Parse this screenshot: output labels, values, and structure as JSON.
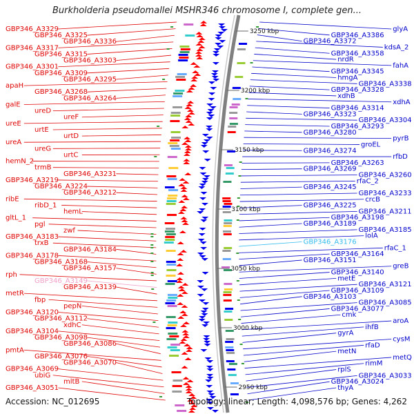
{
  "title": "Burkholderia pseudomallei MSHR346 chromosome I, complete gen...",
  "footer": {
    "accession": "Accession: NC_012695",
    "summary": "Topology: linear; Length: 4,098,576 bp; Genes: 4,262"
  },
  "colors": {
    "left_labels": "#e00000",
    "right_labels": "#0000cc",
    "highlight_left": "#f0a0c8",
    "highlight_right": "#33bbee",
    "backbone": "#808080"
  },
  "kbp_ticks": [
    "3250 kbp",
    "3200 kbp",
    "3150 kbp",
    "3100 kbp",
    "3050 kbp",
    "3000 kbp",
    "2950 kbp"
  ],
  "left_labels": [
    "GBP346_A3329",
    "GBP346_A3325",
    "GBP346_A3336",
    "GBP346_A3317",
    "GBP346_A3315",
    "GBP346_A3303",
    "GBP346_A3301",
    "GBP346_A3309",
    "GBP346_A3295",
    "apaH",
    "GBP346_A3268",
    "GBP346_A3264",
    "galE",
    "ureD",
    "ureF",
    "ureE",
    "urtE",
    "urtD",
    "ureA",
    "ureG",
    "urtC",
    "hemN_2",
    "trmB",
    "GBP346_A3231",
    "GBP346_A3219",
    "GBP346_A3224",
    "GBP346_A3212",
    "ribE",
    "ribD_1",
    "hemL",
    "gltL_1",
    "pgl",
    "zwf",
    "GBP346_A3183",
    "trxB",
    "GBP346_A3184",
    "GBP346_A3178",
    "GBP346_A3168",
    "GBP346_A3157",
    "rph",
    "GBP346_A3149",
    "GBP346_A3139",
    "metR",
    "fbp",
    "pepN",
    "GBP346_A3120",
    "GBP346_A3112",
    "xdhC",
    "GBP346_A3104",
    "GBP346_A3098",
    "GBP346_A3086",
    "pmtA",
    "GBP346_A3076",
    "GBP346_A3070",
    "GBP346_A3069",
    "ubiG",
    "mltB",
    "GBP346_A3051"
  ],
  "right_labels": [
    "glyA",
    "GBP346_A3386",
    "GBP346_A3372",
    "kdsA_2",
    "GBP346_A3358",
    "nrdR",
    "fahA",
    "GBP346_A3345",
    "hmgA",
    "GBP346_A3338",
    "GBP346_A3328",
    "xdhB",
    "xdhA",
    "GBP346_A3314",
    "GBP346_A3323",
    "GBP346_A3304",
    "GBP346_A3293",
    "GBP346_A3280",
    "pyrB",
    "groEL",
    "GBP346_A3274",
    "rfbD",
    "GBP346_A3263",
    "GBP346_A3269",
    "GBP346_A3260",
    "rfaC_2",
    "GBP346_A3245",
    "GBP346_A3233",
    "crcB",
    "GBP346_A3225",
    "GBP346_A3211",
    "GBP346_A3198",
    "GBP346_A3189",
    "GBP346_A3185",
    "lolA",
    "GBP346_A3176",
    "rfaC_1",
    "GBP346_A3164",
    "GBP346_A3151",
    "greB",
    "GBP346_A3140",
    "metE",
    "GBP346_A3121",
    "GBP346_A3109",
    "GBP346_A3103",
    "GBP346_A3085",
    "GBP346_A3077",
    "cmk",
    "aroA",
    "ihfB",
    "gyrA",
    "cysM",
    "rfaD",
    "metN",
    "metQ",
    "rimM",
    "rplS",
    "GBP346_A3033",
    "GBP346_A3024",
    "thyA"
  ]
}
